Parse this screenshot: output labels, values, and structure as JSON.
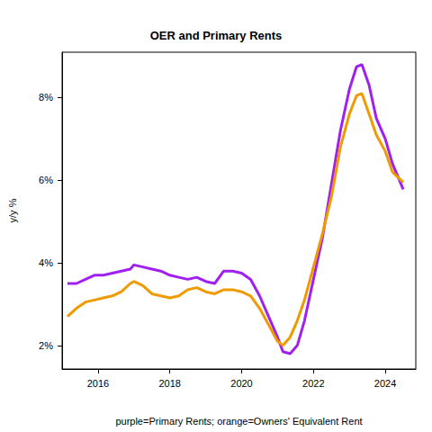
{
  "chart_data": {
    "type": "line",
    "title": "OER and Primary Rents",
    "x_label": "purple=Primary Rents; orange=Owners' Equivalent Rent",
    "y_label": "y/y %",
    "x": [
      2015.15,
      2015.4,
      2015.65,
      2015.9,
      2016.15,
      2016.4,
      2016.65,
      2016.9,
      2017.0,
      2017.25,
      2017.5,
      2017.75,
      2018.0,
      2018.25,
      2018.5,
      2018.75,
      2019.0,
      2019.25,
      2019.5,
      2019.75,
      2020.0,
      2020.25,
      2020.5,
      2020.75,
      2021.0,
      2021.15,
      2021.35,
      2021.55,
      2021.75,
      2022.0,
      2022.25,
      2022.5,
      2022.75,
      2023.0,
      2023.2,
      2023.35,
      2023.55,
      2023.75,
      2024.0,
      2024.2,
      2024.5
    ],
    "series": [
      {
        "color": "#a020f0",
        "values": [
          3.5,
          3.5,
          3.6,
          3.7,
          3.7,
          3.75,
          3.8,
          3.85,
          3.95,
          3.9,
          3.85,
          3.8,
          3.7,
          3.65,
          3.6,
          3.65,
          3.55,
          3.5,
          3.8,
          3.8,
          3.75,
          3.6,
          3.2,
          2.7,
          2.2,
          1.85,
          1.8,
          2.0,
          2.6,
          3.6,
          4.6,
          5.9,
          7.2,
          8.2,
          8.75,
          8.8,
          8.3,
          7.5,
          7.0,
          6.4,
          5.78
        ]
      },
      {
        "color": "#ee9a00",
        "values": [
          2.7,
          2.9,
          3.05,
          3.1,
          3.15,
          3.2,
          3.3,
          3.5,
          3.55,
          3.45,
          3.25,
          3.2,
          3.15,
          3.2,
          3.35,
          3.4,
          3.3,
          3.25,
          3.35,
          3.35,
          3.3,
          3.2,
          2.9,
          2.5,
          2.1,
          2.0,
          2.2,
          2.6,
          3.1,
          3.9,
          4.7,
          5.6,
          6.8,
          7.6,
          8.05,
          8.1,
          7.6,
          7.1,
          6.7,
          6.2,
          5.95
        ]
      }
    ],
    "xlim": [
      2015.0,
      2024.85
    ],
    "xticks": [
      2016,
      2018,
      2020,
      2022,
      2024
    ],
    "ylim": [
      1.43,
      9.1
    ],
    "yticks": [
      {
        "value": 2,
        "label": "2%"
      },
      {
        "value": 4,
        "label": "4%"
      },
      {
        "value": 6,
        "label": "6%"
      },
      {
        "value": 8,
        "label": "8%"
      }
    ],
    "grid": false
  }
}
